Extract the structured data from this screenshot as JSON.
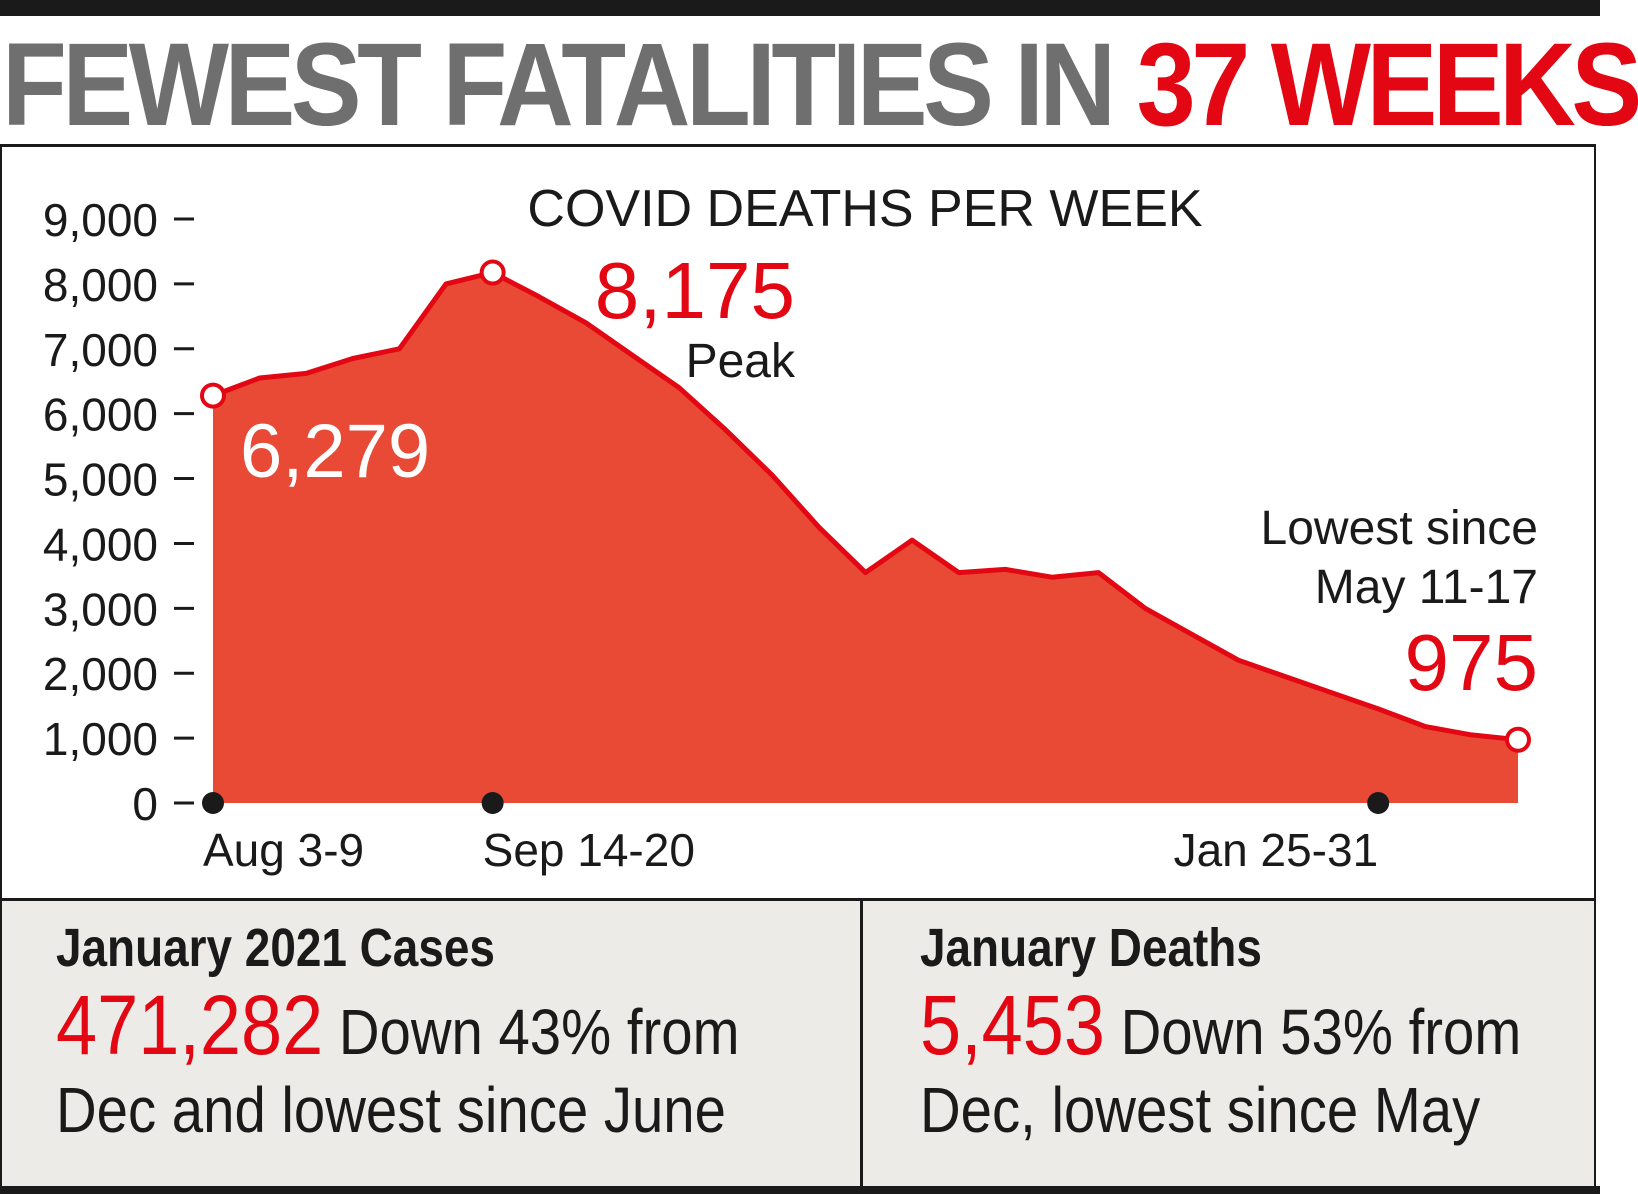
{
  "headline": {
    "part1": "FEWEST FATALITIES IN ",
    "part2": "37 WEEKS"
  },
  "colors": {
    "accent_red": "#e30613",
    "area_fill": "#e84a35",
    "headline_gray": "#6f6f6f",
    "panel_bg": "#ecebe7"
  },
  "chart_data": {
    "type": "area",
    "title": "COVID DEATHS PER WEEK",
    "xlabel": "",
    "ylabel": "",
    "ylim": [
      0,
      9000
    ],
    "yticks": [
      "0",
      "1,000",
      "2,000",
      "3,000",
      "4,000",
      "5,000",
      "6,000",
      "7,000",
      "8,000",
      "9,000"
    ],
    "x_tick_labels": [
      {
        "index": 0,
        "label": "Aug 3-9"
      },
      {
        "index": 6,
        "label": "Sep 14-20"
      },
      {
        "index": 25,
        "label": "Jan 25-31"
      }
    ],
    "series": [
      {
        "values": [
          6279,
          6550,
          6620,
          6850,
          7000,
          8000,
          8175,
          7800,
          7400,
          6900,
          6400,
          5750,
          5050,
          4250,
          3550,
          4050,
          3550,
          3600,
          3480,
          3550,
          3000,
          2600,
          2200,
          1950,
          1700,
          1450,
          1180,
          1050,
          975
        ]
      }
    ],
    "annotations": {
      "start": {
        "value": "6,279"
      },
      "peak": {
        "value": "8,175",
        "label": "Peak"
      },
      "end": {
        "value": "975",
        "label_line1": "Lowest since",
        "label_line2": "May 11-17"
      }
    },
    "grid": false,
    "legend": "none"
  },
  "panels": [
    {
      "title": "January 2021 Cases",
      "number": "471,282",
      "text_line1": " Down 43% from",
      "text_line2": "Dec and lowest since June"
    },
    {
      "title": "January Deaths",
      "number": "5,453",
      "text_line1": " Down 53% from",
      "text_line2": "Dec, lowest since May"
    }
  ]
}
